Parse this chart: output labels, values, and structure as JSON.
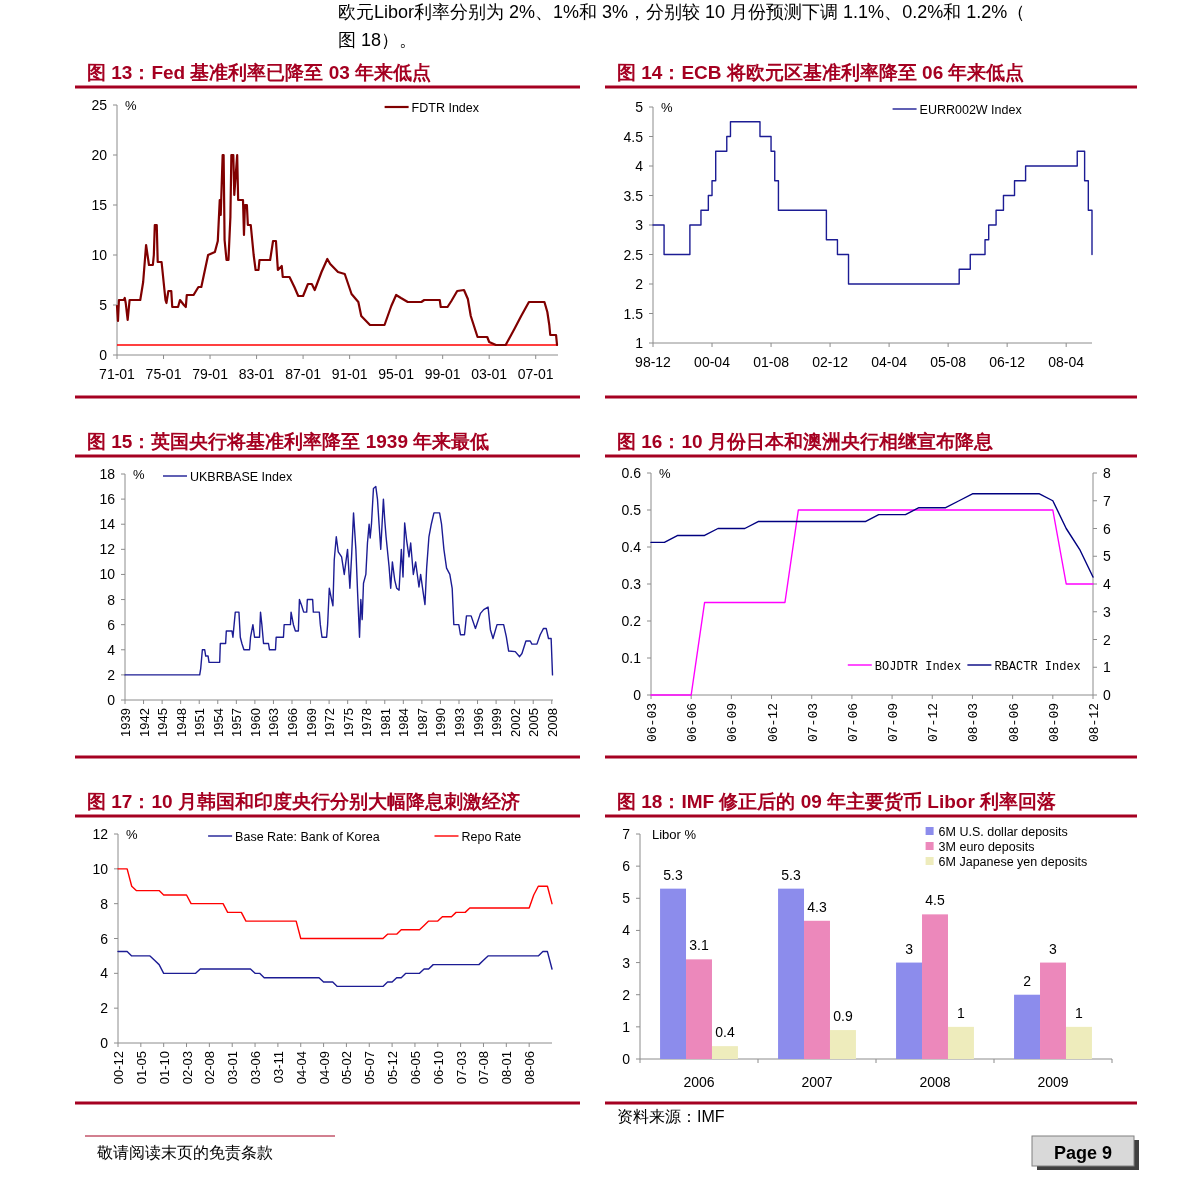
{
  "chart_data": [
    {
      "type": "line",
      "title": "图 13：Fed 基准利率已降至 03 年来低点",
      "ylabel": "%",
      "legend": "top right",
      "xlim": [
        "1971-01",
        "2008-12"
      ],
      "xticks": [
        {
          "value": "1971-01",
          "label": "71-01"
        },
        {
          "value": "1975-01",
          "label": "75-01"
        },
        {
          "value": "1979-01",
          "label": "79-01"
        },
        {
          "value": "1983-01",
          "label": "83-01"
        },
        {
          "value": "1987-01",
          "label": "87-01"
        },
        {
          "value": "1991-01",
          "label": "91-01"
        },
        {
          "value": "1995-01",
          "label": "95-01"
        },
        {
          "value": "1999-01",
          "label": "99-01"
        },
        {
          "value": "2003-01",
          "label": "03-01"
        },
        {
          "value": "2007-01",
          "label": "07-01"
        }
      ],
      "ylim": [
        0,
        25
      ],
      "yticks": [
        0,
        5,
        10,
        15,
        20,
        25
      ],
      "ref_lines": [
        {
          "axis": "y",
          "value": 1,
          "color": "#ff0000"
        }
      ],
      "series": [
        {
          "name": "FDTR Index",
          "color": "#800000",
          "x": [
            "1971-01",
            "1971-02",
            "1971-03",
            "1971-08",
            "1971-09",
            "1971-10",
            "1971-12",
            "1972-02",
            "1973-01",
            "1973-04",
            "1973-07",
            "1973-10",
            "1974-02",
            "1974-03",
            "1974-04",
            "1974-06",
            "1974-07",
            "1974-11",
            "1975-03",
            "1975-04",
            "1975-06",
            "1975-09",
            "1975-10",
            "1976-04",
            "1976-06",
            "1976-10",
            "1976-12",
            "1977-01",
            "1977-08",
            "1978-01",
            "1978-04",
            "1978-11",
            "1979-06",
            "1979-09",
            "1979-11",
            "1979-12",
            "1980-02",
            "1980-03",
            "1980-04",
            "1980-06",
            "1980-08",
            "1980-10",
            "1980-11",
            "1981-01",
            "1981-02",
            "1981-05",
            "1981-06",
            "1981-11",
            "1981-12",
            "1982-01",
            "1982-03",
            "1982-04",
            "1982-07",
            "1982-10",
            "1982-12",
            "1983-03",
            "1983-04",
            "1984-03",
            "1984-06",
            "1984-09",
            "1984-11",
            "1985-03",
            "1985-04",
            "1985-11",
            "1986-04",
            "1986-08",
            "1987-01",
            "1987-06",
            "1987-10",
            "1988-01",
            "1988-08",
            "1989-02",
            "1989-05",
            "1990-01",
            "1990-08",
            "1991-03",
            "1991-10",
            "1992-01",
            "1992-07",
            "1992-10",
            "1994-01",
            "1994-08",
            "1995-01",
            "1995-06",
            "1996-01",
            "1997-03",
            "1997-06",
            "1998-10",
            "1998-11",
            "1999-06",
            "1999-10",
            "2000-04",
            "2000-11",
            "2001-03",
            "2001-06",
            "2002-01",
            "2002-11",
            "2003-01",
            "2003-08",
            "2004-06",
            "2005-03",
            "2005-10",
            "2006-06",
            "2007-10",
            "2008-01",
            "2008-03",
            "2008-04",
            "2008-10",
            "2008-11"
          ],
          "values": [
            4.9,
            3.4,
            5.5,
            5.5,
            5.7,
            5.2,
            3.5,
            5.5,
            5.5,
            7.3,
            11,
            9,
            9,
            10,
            13,
            13,
            9.3,
            9.3,
            5.5,
            5.2,
            6.4,
            6.4,
            4.8,
            4.8,
            5.5,
            5.0,
            4.8,
            6,
            6,
            6.8,
            6.8,
            10,
            10.3,
            11.4,
            15.5,
            14,
            20,
            20,
            11.5,
            9.5,
            9.5,
            13.8,
            20,
            20,
            16,
            20,
            15.5,
            15.5,
            12,
            15,
            15,
            13,
            13,
            10,
            8.5,
            8.5,
            9.5,
            9.5,
            11.4,
            11.4,
            8.5,
            8.9,
            7.8,
            7.8,
            6.8,
            5.9,
            5.9,
            7.1,
            7.1,
            6.5,
            8.3,
            9.6,
            9.1,
            8.3,
            8.1,
            6.1,
            5.3,
            3.9,
            3.3,
            3.0,
            3.0,
            4.9,
            6.0,
            5.7,
            5.3,
            5.3,
            5.5,
            5.5,
            4.8,
            4.8,
            5.4,
            6.4,
            6.5,
            5.6,
            3.9,
            1.8,
            1.8,
            1.3,
            1.0,
            1.0,
            2.6,
            3.9,
            5.3,
            5.3,
            4.3,
            3.0,
            2.0,
            2.0,
            1.0
          ]
        }
      ]
    },
    {
      "type": "step",
      "title": "图 14：ECB 将欧元区基准利率降至 06 年来低点",
      "ylabel": "%",
      "legend": "top right",
      "xlim": [
        "1998-12",
        "2008-11"
      ],
      "xticks": [
        {
          "value": "1998-12",
          "label": "98-12"
        },
        {
          "value": "2000-04",
          "label": "00-04"
        },
        {
          "value": "2001-08",
          "label": "01-08"
        },
        {
          "value": "2002-12",
          "label": "02-12"
        },
        {
          "value": "2004-04",
          "label": "04-04"
        },
        {
          "value": "2005-08",
          "label": "05-08"
        },
        {
          "value": "2006-12",
          "label": "06-12"
        },
        {
          "value": "2008-04",
          "label": "08-04"
        }
      ],
      "ylim": [
        1,
        5
      ],
      "yticks": [
        1,
        1.5,
        2,
        2.5,
        3,
        3.5,
        4,
        4.5,
        5
      ],
      "series": [
        {
          "name": "EURR002W Index",
          "color": "#1c1c94",
          "x": [
            "1998-12",
            "1999-03",
            "1999-10",
            "2000-01",
            "2000-03",
            "2000-04",
            "2000-05",
            "2000-08",
            "2000-09",
            "2001-05",
            "2001-08",
            "2001-09",
            "2001-10",
            "2002-11",
            "2003-02",
            "2003-05",
            "2005-11",
            "2006-02",
            "2006-06",
            "2006-07",
            "2006-09",
            "2006-11",
            "2007-02",
            "2007-05",
            "2008-07",
            "2008-09",
            "2008-10",
            "2008-11"
          ],
          "values": [
            3,
            2.5,
            3,
            3.25,
            3.5,
            3.75,
            4.25,
            4.5,
            4.75,
            4.5,
            4.25,
            3.75,
            3.25,
            2.75,
            2.5,
            2,
            2.25,
            2.5,
            2.75,
            3,
            3.25,
            3.5,
            3.75,
            4,
            4.25,
            3.75,
            3.25,
            2.5
          ]
        }
      ]
    },
    {
      "type": "line",
      "title": "图 15：英国央行将基准利率降至 1939 年来最低",
      "ylabel": "%",
      "legend": "top left",
      "xlim": [
        1939,
        2008.2
      ],
      "xticks": [
        1939,
        1942,
        1945,
        1948,
        1951,
        1954,
        1957,
        1960,
        1963,
        1966,
        1969,
        1972,
        1975,
        1978,
        1981,
        1984,
        1987,
        1990,
        1993,
        1996,
        1999,
        2002,
        2005,
        2008
      ],
      "ylim": [
        0,
        18
      ],
      "yticks": [
        0,
        2,
        4,
        6,
        8,
        10,
        12,
        14,
        16,
        18
      ],
      "series": [
        {
          "name": "UKBRBASE Index",
          "color": "#1c1c94",
          "x": [
            1939.0,
            1951.08,
            1951.24,
            1951.51,
            1951.89,
            1952.05,
            1952.43,
            1952.59,
            1954.31,
            1954.41,
            1955.27,
            1955.38,
            1956.29,
            1956.45,
            1956.83,
            1957.42,
            1957.64,
            1957.9,
            1958.23,
            1959.14,
            1959.3,
            1959.68,
            1959.95,
            1960.75,
            1960.91,
            1961.13,
            1961.4,
            1962.2,
            1962.36,
            1963.33,
            1963.44,
            1964.62,
            1964.73,
            1965.75,
            1965.85,
            1966.23,
            1966.55,
            1967.03,
            1967.2,
            1967.57,
            1967.89,
            1968.38,
            1968.48,
            1969.34,
            1969.45,
            1970.42,
            1970.58,
            1970.85,
            1971.6,
            1971.76,
            1972.03,
            1972.4,
            1972.62,
            1972.83,
            1973.16,
            1973.48,
            1974.02,
            1974.45,
            1974.98,
            1975.36,
            1975.63,
            1975.95,
            1976.33,
            1976.59,
            1976.92,
            1977.13,
            1977.35,
            1977.56,
            1977.94,
            1978.2,
            1978.47,
            1978.64,
            1978.85,
            1979.17,
            1979.55,
            1979.82,
            1980.08,
            1980.35,
            1980.78,
            1981.0,
            1981.21,
            1981.7,
            1981.96,
            1982.23,
            1982.61,
            1982.93,
            1983.31,
            1983.68,
            1983.95,
            1984.22,
            1984.54,
            1984.92,
            1985.19,
            1985.62,
            1985.99,
            1986.53,
            1986.8,
            1987.23,
            1987.5,
            1987.77,
            1988.14,
            1988.52,
            1988.95,
            1989.86,
            1990.18,
            1990.56,
            1990.99,
            1991.52,
            1991.9,
            1992.17,
            1992.97,
            1993.24,
            1993.89,
            1994.21,
            1994.96,
            1995.66,
            1996.47,
            1997.0,
            1997.7,
            1998.08,
            1998.5,
            1999.15,
            2000.22,
            2000.65,
            2001.03,
            2002.1,
            2002.8,
            2003.18,
            2003.82,
            2004.52,
            2004.79,
            2005.6,
            2006.13,
            2006.67,
            2007.1,
            2007.47,
            2007.9,
            2008.12
          ],
          "values": [
            2.0,
            2.0,
            2.5,
            4,
            4,
            3.5,
            3.5,
            3,
            3,
            4.5,
            4.5,
            5.5,
            5.5,
            5,
            7,
            7,
            5,
            4.5,
            4,
            4,
            5,
            6,
            5,
            5,
            7,
            6,
            4.5,
            4.5,
            4,
            4,
            5,
            5,
            6,
            6,
            7,
            6,
            5.5,
            5.5,
            8,
            7.5,
            7,
            7,
            8,
            8,
            7,
            7,
            6,
            5,
            5,
            6,
            8.9,
            8,
            7.5,
            11.15,
            13,
            11.8,
            11.4,
            10,
            12,
            8.9,
            11.4,
            14.9,
            12,
            8.75,
            5,
            8,
            6.4,
            9.3,
            10,
            12.5,
            14,
            12.9,
            14,
            16.85,
            17,
            16,
            14,
            12,
            16,
            14.3,
            13,
            10.6,
            8.9,
            11,
            9.55,
            8.9,
            8.75,
            12,
            9.8,
            14.1,
            12.7,
            11.4,
            12.5,
            10,
            11,
            9,
            10,
            8.5,
            7.6,
            10.5,
            13,
            14,
            14.9,
            14.9,
            14,
            12,
            10.5,
            10,
            8.9,
            6,
            6,
            5.2,
            5.2,
            6.7,
            6.7,
            5.7,
            6.9,
            7.2,
            7.4,
            5.6,
            4.9,
            6,
            6,
            5.05,
            3.9,
            3.85,
            3.45,
            3.7,
            4.7,
            4.7,
            4.45,
            4.45,
            5.2,
            5.7,
            5.7,
            4.9,
            4.9,
            2.0
          ]
        }
      ]
    },
    {
      "type": "line",
      "title": "图 16：10 月份日本和澳洲央行相继宣布降息",
      "ylabel": "%",
      "legend": "bottom right",
      "xlim": [
        "2006-03",
        "2008-12"
      ],
      "xticks": [
        {
          "value": "2006-03",
          "label": "06-03"
        },
        {
          "value": "2006-06",
          "label": "06-06"
        },
        {
          "value": "2006-09",
          "label": "06-09"
        },
        {
          "value": "2006-12",
          "label": "06-12"
        },
        {
          "value": "2007-03",
          "label": "07-03"
        },
        {
          "value": "2007-06",
          "label": "07-06"
        },
        {
          "value": "2007-09",
          "label": "07-09"
        },
        {
          "value": "2007-12",
          "label": "07-12"
        },
        {
          "value": "2008-03",
          "label": "08-03"
        },
        {
          "value": "2008-06",
          "label": "08-06"
        },
        {
          "value": "2008-09",
          "label": "08-09"
        },
        {
          "value": "2008-12",
          "label": "08-12"
        }
      ],
      "ylim": [
        0,
        0.6
      ],
      "yticks": [
        0,
        0.1,
        0.2,
        0.3,
        0.4,
        0.5,
        0.6
      ],
      "y2lim": [
        0,
        8
      ],
      "y2ticks": [
        0,
        1,
        2,
        3,
        4,
        5,
        6,
        7,
        8
      ],
      "x": [
        "2006-03",
        "2006-04",
        "2006-05",
        "2006-06",
        "2006-07",
        "2006-08",
        "2006-09",
        "2006-10",
        "2006-11",
        "2006-12",
        "2007-01",
        "2007-02",
        "2007-03",
        "2007-04",
        "2007-05",
        "2007-06",
        "2007-07",
        "2007-08",
        "2007-09",
        "2007-10",
        "2007-11",
        "2007-12",
        "2008-01",
        "2008-02",
        "2008-03",
        "2008-04",
        "2008-05",
        "2008-06",
        "2008-07",
        "2008-08",
        "2008-09",
        "2008-10",
        "2008-11",
        "2008-12"
      ],
      "series": [
        {
          "name": "BOJDTR Index",
          "color": "#ff00ff",
          "values": [
            0,
            0,
            0,
            0,
            0.25,
            0.25,
            0.25,
            0.25,
            0.25,
            0.25,
            0.25,
            0.5,
            0.5,
            0.5,
            0.5,
            0.5,
            0.5,
            0.5,
            0.5,
            0.5,
            0.5,
            0.5,
            0.5,
            0.5,
            0.5,
            0.5,
            0.5,
            0.5,
            0.5,
            0.5,
            0.5,
            0.3,
            0.3,
            0.3
          ]
        },
        {
          "name": "RBACTR Index",
          "color": "#000080",
          "axis": "y2",
          "values": [
            5.5,
            5.5,
            5.75,
            5.75,
            5.75,
            6,
            6,
            6,
            6.25,
            6.25,
            6.25,
            6.25,
            6.25,
            6.25,
            6.25,
            6.25,
            6.25,
            6.5,
            6.5,
            6.5,
            6.75,
            6.75,
            6.75,
            7,
            7.25,
            7.25,
            7.25,
            7.25,
            7.25,
            7.25,
            7,
            6,
            5.25,
            4.25
          ]
        }
      ]
    },
    {
      "type": "line",
      "title": "图 17：10 月韩国和印度央行分别大幅降息刺激经济",
      "ylabel": "%",
      "legend": "top",
      "xlim": [
        "2000-12",
        "2008-11"
      ],
      "xticks": [
        {
          "value": "2000-12",
          "label": "00-12"
        },
        {
          "value": "2001-05",
          "label": "01-05"
        },
        {
          "value": "2001-10",
          "label": "01-10"
        },
        {
          "value": "2002-03",
          "label": "02-03"
        },
        {
          "value": "2002-08",
          "label": "02-08"
        },
        {
          "value": "2003-01",
          "label": "03-01"
        },
        {
          "value": "2003-06",
          "label": "03-06"
        },
        {
          "value": "2003-11",
          "label": "03-11"
        },
        {
          "value": "2004-04",
          "label": "04-04"
        },
        {
          "value": "2004-09",
          "label": "04-09"
        },
        {
          "value": "2005-02",
          "label": "05-02"
        },
        {
          "value": "2005-07",
          "label": "05-07"
        },
        {
          "value": "2005-12",
          "label": "05-12"
        },
        {
          "value": "2006-05",
          "label": "06-05"
        },
        {
          "value": "2006-10",
          "label": "06-10"
        },
        {
          "value": "2007-03",
          "label": "07-03"
        },
        {
          "value": "2007-08",
          "label": "07-08"
        },
        {
          "value": "2008-01",
          "label": "08-01"
        },
        {
          "value": "2008-06",
          "label": "08-06"
        }
      ],
      "ylim": [
        0,
        12
      ],
      "yticks": [
        0,
        2,
        4,
        6,
        8,
        10,
        12
      ],
      "series": [
        {
          "name": "Base Rate: Bank of Korea",
          "color": "#1c1c94",
          "x": [
            "2000-12",
            "2001-02",
            "2001-03",
            "2001-07",
            "2001-08",
            "2001-09",
            "2001-10",
            "2002-05",
            "2002-06",
            "2003-05",
            "2003-06",
            "2003-07",
            "2003-08",
            "2004-08",
            "2004-09",
            "2004-11",
            "2004-12",
            "2005-10",
            "2005-11",
            "2005-12",
            "2006-01",
            "2006-02",
            "2006-03",
            "2006-06",
            "2006-07",
            "2006-08",
            "2006-09",
            "2007-07",
            "2007-08",
            "2007-09",
            "2008-08",
            "2008-09",
            "2008-10",
            "2008-11"
          ],
          "values": [
            5.25,
            5.25,
            5,
            5,
            4.75,
            4.5,
            4,
            4,
            4.25,
            4.25,
            4,
            4,
            3.75,
            3.75,
            3.5,
            3.5,
            3.25,
            3.25,
            3.5,
            3.5,
            3.75,
            3.75,
            4,
            4,
            4.25,
            4.25,
            4.5,
            4.5,
            4.75,
            5,
            5,
            5.25,
            5.25,
            4.25
          ]
        },
        {
          "name": "Repo Rate",
          "color": "#ff0000",
          "x": [
            "2000-12",
            "2001-02",
            "2001-03",
            "2001-04",
            "2001-09",
            "2001-10",
            "2002-03",
            "2002-04",
            "2002-11",
            "2002-12",
            "2003-03",
            "2003-04",
            "2004-03",
            "2004-04",
            "2005-10",
            "2005-11",
            "2006-01",
            "2006-02",
            "2006-06",
            "2006-07",
            "2006-08",
            "2006-10",
            "2006-11",
            "2007-01",
            "2007-02",
            "2007-04",
            "2007-05",
            "2008-06",
            "2008-07",
            "2008-08",
            "2008-10",
            "2008-11"
          ],
          "values": [
            10,
            10,
            9,
            8.75,
            8.75,
            8.5,
            8.5,
            8,
            8,
            7.5,
            7.5,
            7,
            7,
            6,
            6,
            6.25,
            6.25,
            6.5,
            6.5,
            6.75,
            7,
            7,
            7.25,
            7.25,
            7.5,
            7.5,
            7.75,
            7.75,
            8.5,
            9,
            9,
            8
          ]
        }
      ]
    },
    {
      "type": "bar",
      "title": "图 18：IMF 修正后的 09 年主要货币 Libor 利率回落",
      "ylabel": "Libor %",
      "legend": "top right",
      "data_labels": true,
      "categories": [
        "2006",
        "2007",
        "2008",
        "2009"
      ],
      "ylim": [
        0,
        7
      ],
      "yticks": [
        0,
        1,
        2,
        3,
        4,
        5,
        6,
        7
      ],
      "series": [
        {
          "name": "6M U.S. dollar deposits",
          "color": "#8c8cec",
          "values": [
            5.3,
            5.3,
            3,
            2
          ]
        },
        {
          "name": "3M euro deposits",
          "color": "#ec88bb",
          "values": [
            3.1,
            4.3,
            4.5,
            3
          ]
        },
        {
          "name": "6M Japanese yen deposits",
          "color": "#eeecbc",
          "values": [
            0.4,
            0.9,
            1,
            1
          ]
        }
      ],
      "annotations": [
        "资料来源：IMF"
      ]
    },
    {
      "type": "other",
      "annotations": [
        "欧元Libor利率分别为 2%、1%和 3%，分别较 10 月份预测下调 1.1%、0.2%和 1.2%（",
        "图 18）。",
        "敬请阅读末页的免责条款",
        "Page 9"
      ]
    }
  ]
}
